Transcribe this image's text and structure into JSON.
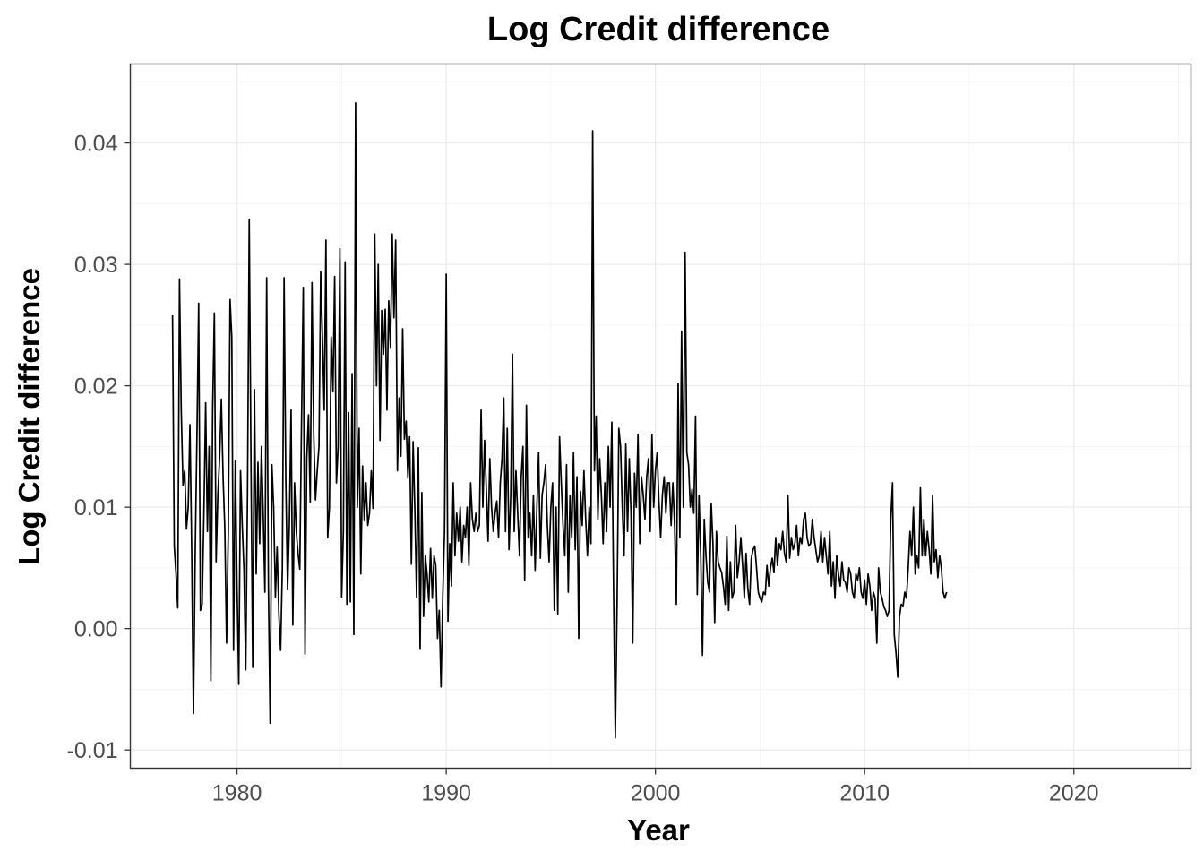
{
  "chart_data": {
    "type": "line",
    "title": "Log Credit difference",
    "xlabel": "Year",
    "ylabel": "Log Credit difference",
    "xlim": [
      1974.9,
      2025.6
    ],
    "ylim": [
      -0.0115,
      0.0465
    ],
    "x_ticks": [
      1980,
      1990,
      2000,
      2010,
      2020
    ],
    "x_tick_labels": [
      "1980",
      "1990",
      "2000",
      "2010",
      "2020"
    ],
    "y_ticks": [
      -0.01,
      0.0,
      0.01,
      0.02,
      0.03,
      0.04
    ],
    "y_tick_labels": [
      "-0.01",
      "0.00",
      "0.01",
      "0.02",
      "0.03",
      "0.04"
    ],
    "grid": true,
    "legend": "none",
    "series": [
      {
        "color": "#000000",
        "x_start": 1976.917,
        "x_step": 0.08333,
        "values": [
          0.0258,
          0.0068,
          0.0045,
          0.0017,
          0.0288,
          0.018,
          0.0118,
          0.013,
          0.0082,
          0.01,
          0.0168,
          0.0065,
          -0.007,
          0.006,
          0.0158,
          0.0268,
          0.0015,
          0.002,
          0.0095,
          0.0186,
          0.008,
          0.015,
          -0.0043,
          0.018,
          0.026,
          0.0055,
          0.011,
          0.014,
          0.0189,
          0.0125,
          0.0082,
          -0.0012,
          0.008,
          0.0271,
          0.024,
          -0.0018,
          0.0138,
          0.0035,
          -0.0046,
          0.013,
          0.0085,
          0.0048,
          -0.0034,
          0.011,
          0.0337,
          0.0138,
          -0.0032,
          0.0197,
          0.0045,
          0.0137,
          0.007,
          0.015,
          0.0095,
          0.003,
          0.0289,
          0.0035,
          -0.0078,
          0.0135,
          0.01,
          0.0026,
          0.0067,
          0.0012,
          -0.0018,
          0.005,
          0.0289,
          0.012,
          0.0032,
          0.0085,
          0.018,
          0.0003,
          0.012,
          0.008,
          0.0062,
          0.0049,
          0.017,
          0.0281,
          -0.0021,
          0.014,
          0.0176,
          0.0104,
          0.0285,
          0.016,
          0.0106,
          0.013,
          0.015,
          0.0294,
          0.024,
          0.018,
          0.032,
          0.0075,
          0.01,
          0.024,
          0.0195,
          0.029,
          0.012,
          0.015,
          0.0313,
          0.0026,
          0.008,
          0.0302,
          0.002,
          0.0178,
          0.0022,
          0.021,
          -0.0005,
          0.0433,
          0.01,
          0.0165,
          0.0045,
          0.0134,
          0.0089,
          0.012,
          0.0085,
          0.0095,
          0.013,
          0.0099,
          0.0325,
          0.02,
          0.03,
          0.0155,
          0.0262,
          0.0226,
          0.0263,
          0.018,
          0.027,
          0.0231,
          0.0325,
          0.0256,
          0.032,
          0.013,
          0.019,
          0.0142,
          0.0247,
          0.0156,
          0.0171,
          0.0124,
          0.0158,
          0.0053,
          0.0154,
          0.0097,
          0.0026,
          0.0149,
          -0.0017,
          0.0112,
          0.001,
          0.006,
          0.0045,
          0.0022,
          0.0066,
          0.0025,
          0.006,
          0.0052,
          -0.0008,
          0.0015,
          -0.0048,
          0.0025,
          0.008,
          0.0292,
          0.0006,
          0.007,
          0.0035,
          0.012,
          0.006,
          0.0095,
          0.0072,
          0.01,
          0.0055,
          0.0085,
          0.0075,
          0.01,
          0.0052,
          0.012,
          0.009,
          0.008,
          0.0095,
          0.008,
          0.0085,
          0.018,
          0.01,
          0.0155,
          0.0115,
          0.0072,
          0.014,
          0.01,
          0.008,
          0.0095,
          0.0105,
          0.0075,
          0.012,
          0.014,
          0.019,
          0.008,
          0.0165,
          0.0065,
          0.011,
          0.0226,
          0.008,
          0.013,
          0.0095,
          0.006,
          0.0125,
          0.015,
          0.004,
          0.0184,
          0.0075,
          0.0095,
          0.006,
          0.011,
          0.0048,
          0.01,
          0.0145,
          0.0058,
          0.011,
          0.012,
          0.0135,
          0.0085,
          0.0055,
          0.01,
          0.012,
          0.0015,
          0.01,
          0.0012,
          0.0158,
          0.012,
          0.0085,
          0.006,
          0.0135,
          0.003,
          0.011,
          0.0075,
          0.0145,
          0.0065,
          0.0125,
          -0.0008,
          0.0113,
          0.0085,
          0.013,
          0.009,
          0.006,
          0.01,
          0.007,
          0.041,
          0.013,
          0.0175,
          0.009,
          0.014,
          0.011,
          0.007,
          0.012,
          0.008,
          0.015,
          0.01,
          0.017,
          0.003,
          -0.009,
          0.002,
          0.0165,
          0.015,
          0.01,
          0.006,
          0.0152,
          0.008,
          0.014,
          0.0095,
          -0.0012,
          0.0128,
          0.01,
          0.016,
          0.007,
          0.0125,
          0.011,
          0.009,
          0.0125,
          0.014,
          0.008,
          0.016,
          0.01,
          0.013,
          0.0145,
          0.0105,
          0.0075,
          0.011,
          0.0125,
          0.0095,
          0.012,
          0.012,
          0.0085,
          0.012,
          0.0085,
          0.002,
          0.0202,
          0.0075,
          0.0245,
          0.01,
          0.031,
          0.0145,
          0.0135,
          0.01,
          0.0115,
          0.0095,
          0.0175,
          0.0028,
          0.011,
          0.006,
          -0.0022,
          0.009,
          0.006,
          0.0038,
          0.003,
          0.0103,
          0.007,
          0.0005,
          0.008,
          0.0055,
          0.005,
          0.0046,
          0.0035,
          0.002,
          0.0076,
          0.0015,
          0.0055,
          0.0025,
          0.003,
          0.0085,
          0.0042,
          0.0055,
          0.0075,
          0.0052,
          0.0025,
          0.0062,
          0.0033,
          0.002,
          0.0058,
          0.0065,
          0.0068,
          0.005,
          0.003,
          0.0025,
          0.0022,
          0.003,
          0.0028,
          0.0052,
          0.0035,
          0.005,
          0.0058,
          0.0046,
          0.0075,
          0.0052,
          0.007,
          0.0065,
          0.008,
          0.0062,
          0.0055,
          0.011,
          0.0058,
          0.0075,
          0.0065,
          0.007,
          0.0085,
          0.006,
          0.0075,
          0.007,
          0.009,
          0.0095,
          0.0075,
          0.0068,
          0.007,
          0.009,
          0.0075,
          0.0065,
          0.0055,
          0.006,
          0.008,
          0.0055,
          0.0075,
          0.006,
          0.0045,
          0.008,
          0.0035,
          0.0055,
          0.0025,
          0.006,
          0.0045,
          0.0035,
          0.0055,
          0.004,
          0.0038,
          0.003,
          0.005,
          0.0045,
          0.003,
          0.0025,
          0.0045,
          0.004,
          0.005,
          0.003,
          0.0025,
          0.004,
          0.002,
          0.0045,
          0.0035,
          0.0015,
          0.003,
          0.0025,
          -0.0012,
          0.005,
          0.003,
          0.0025,
          0.0018,
          0.0015,
          0.001,
          0.0015,
          0.009,
          0.012,
          -0.0005,
          -0.002,
          -0.004,
          0.001,
          0.002,
          0.0018,
          0.003,
          0.0025,
          0.005,
          0.008,
          0.006,
          0.01,
          0.0045,
          0.006,
          0.005,
          0.0116,
          0.006,
          0.009,
          0.006,
          0.008,
          0.0065,
          0.0045,
          0.011,
          0.0055,
          0.0065,
          0.0042,
          0.006,
          0.005,
          0.003,
          0.0025,
          0.003
        ]
      }
    ]
  }
}
